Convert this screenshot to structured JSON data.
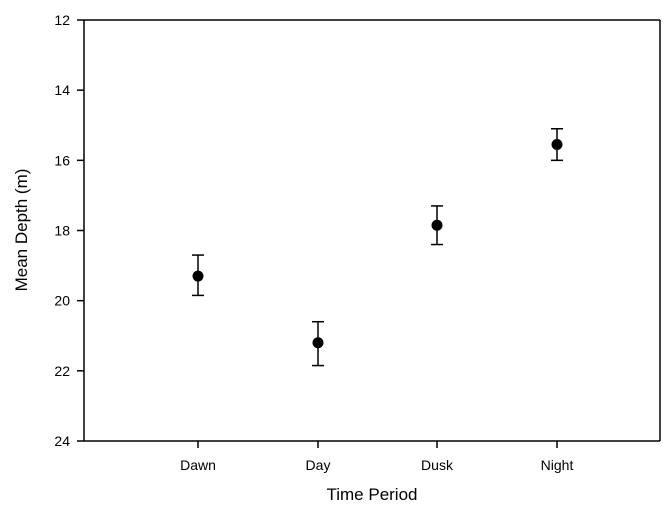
{
  "chart_data": {
    "type": "scatter",
    "title": "",
    "xlabel": "Time Period",
    "ylabel": "Mean Depth (m)",
    "categories": [
      "Dawn",
      "Day",
      "Dusk",
      "Night"
    ],
    "series": [
      {
        "values": [
          19.3,
          21.2,
          17.85,
          15.55
        ],
        "error_upper": [
          18.7,
          20.6,
          17.3,
          15.1
        ],
        "error_lower": [
          19.85,
          21.85,
          18.4,
          16.0
        ]
      }
    ],
    "ylim": [
      12,
      24
    ],
    "y_inverted": true,
    "y_ticks": [
      "12",
      "14",
      "16",
      "18",
      "20",
      "22",
      "24"
    ],
    "grid": false,
    "legend": "none",
    "colors": {
      "marker": "#000000",
      "axis": "#000000"
    }
  }
}
